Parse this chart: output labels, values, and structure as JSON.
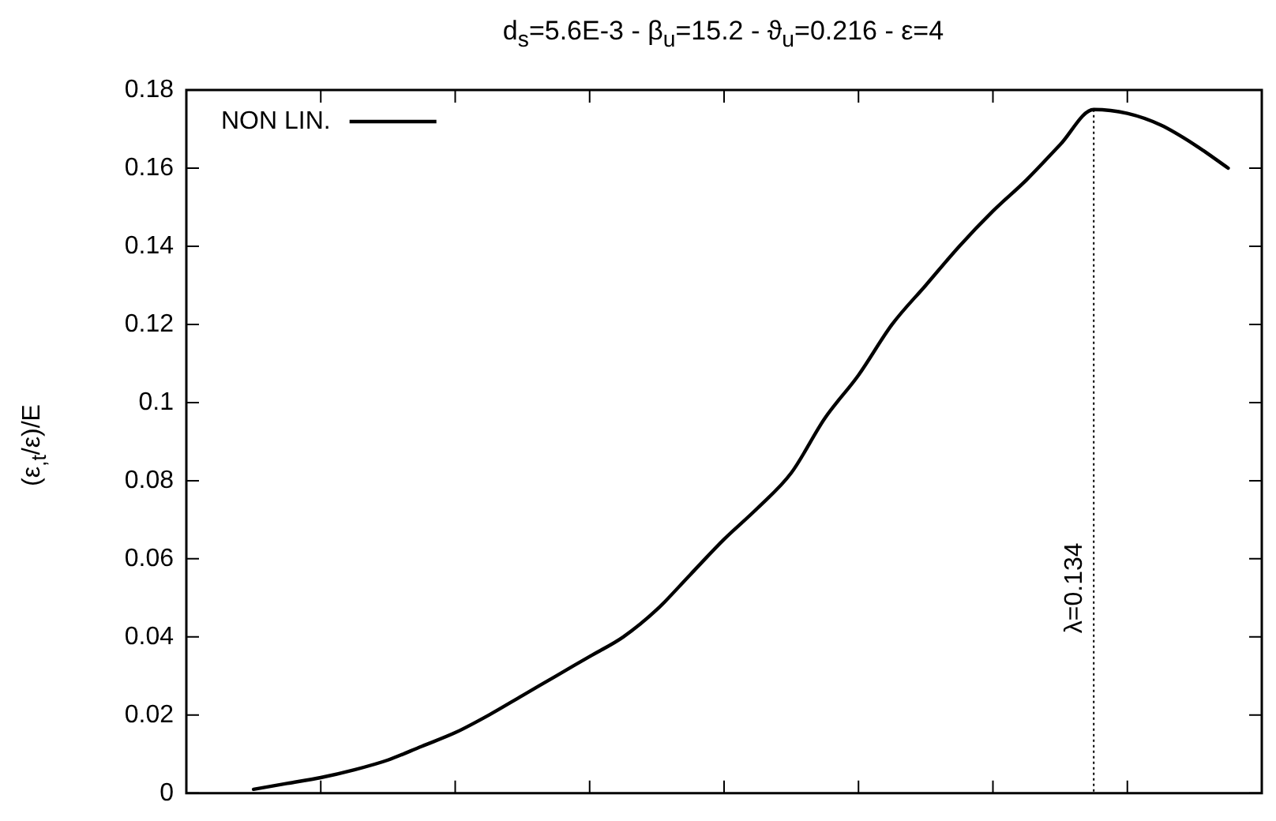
{
  "chart_data": {
    "type": "line",
    "title": "d$_{s}$=5.6E-3 - β$_{u}$=15.2 - ϑ$_{u}$=0.216 - ε=4",
    "ylabel": "(ε$_{,t}$/ε)/E",
    "categories": [
      null,
      null,
      null,
      null,
      null,
      null,
      null,
      null,
      null,
      null,
      null,
      null,
      null,
      null,
      null,
      null,
      null,
      null,
      null,
      null,
      null,
      null,
      null,
      null,
      null,
      null,
      null,
      null,
      null,
      null,
      null,
      null,
      null
    ],
    "series": [
      {
        "name": "NON LIN.",
        "color": "#000000",
        "values": [
          null,
          null,
          0.001,
          0.0025,
          0.004,
          0.006,
          0.0085,
          0.012,
          0.0155,
          0.02,
          0.025,
          0.03,
          0.035,
          0.04,
          0.047,
          0.056,
          0.065,
          0.073,
          0.082,
          0.096,
          0.107,
          0.12,
          0.13,
          0.14,
          0.149,
          0.157,
          0.166,
          0.175,
          0.174,
          0.171,
          0.166,
          0.16,
          null
        ]
      }
    ],
    "ylim": [
      0,
      0.18
    ],
    "yticks": [
      0,
      0.02,
      0.04,
      0.06,
      0.08,
      0.1,
      0.12,
      0.14,
      0.16,
      0.18
    ],
    "annotations": [
      "λ=0.134"
    ],
    "legend": "top left",
    "tick_labels": "y",
    "marker": "none",
    "line_style": "solid",
    "grid": false
  }
}
